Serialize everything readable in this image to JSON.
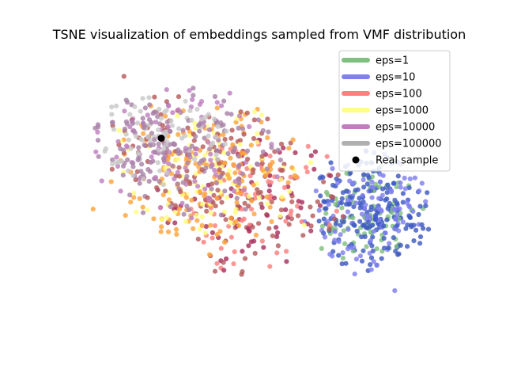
{
  "chart_data": {
    "type": "scatter",
    "title": "TSNE visualization of embeddings sampled from VMF distribution",
    "xlabel": "",
    "ylabel": "",
    "axes_visible": false,
    "grid": false,
    "legend_placement": "top-right",
    "xlim": [
      -60,
      60
    ],
    "ylim": [
      -50,
      50
    ],
    "series": [
      {
        "name": "eps=1",
        "color": "#7fbf7f",
        "marker": "circle",
        "clusters": [
          {
            "center": [
              33,
              -8
            ],
            "spread": [
              16,
              19
            ],
            "count": 160
          }
        ]
      },
      {
        "name": "eps=10",
        "color": "#7f7fef",
        "marker": "circle",
        "clusters": [
          {
            "center": [
              33,
              -8
            ],
            "spread": [
              18,
              21
            ],
            "count": 220
          }
        ]
      },
      {
        "name": "eps=100",
        "color": "#ff7f7f",
        "marker": "circle",
        "clusters": [
          {
            "center": [
              -2,
              -4
            ],
            "spread": [
              28,
              23
            ],
            "count": 220
          }
        ]
      },
      {
        "name": "eps=1000",
        "color": "#ffff7f",
        "marker": "circle",
        "clusters": [
          {
            "center": [
              -16,
              6
            ],
            "spread": [
              30,
              24
            ],
            "count": 260
          }
        ]
      },
      {
        "name": "eps=10000",
        "color": "#bf7fbf",
        "marker": "circle",
        "clusters": [
          {
            "center": [
              -22,
              12
            ],
            "spread": [
              28,
              22
            ],
            "count": 240
          }
        ]
      },
      {
        "name": "eps=100000",
        "color": "#b0b0b0",
        "marker": "circle",
        "clusters": [
          {
            "center": [
              -30,
              18
            ],
            "spread": [
              20,
              15
            ],
            "count": 160
          }
        ]
      },
      {
        "name": "Real sample",
        "color": "#000000",
        "marker": "circle",
        "x": [
          -30
        ],
        "y": [
          18
        ]
      }
    ],
    "overlay_palette": {
      "orange": "#ffa33c",
      "blue": "#3f5ac2",
      "dark_red": "#a9315f",
      "grey_purple": "#a882a8",
      "brown_red": "#b65c5c",
      "light_grey": "#c8c8c8"
    }
  },
  "legend": {
    "items": [
      {
        "label": "eps=1",
        "color": "#7fbf7f"
      },
      {
        "label": "eps=10",
        "color": "#7f7fef"
      },
      {
        "label": "eps=100",
        "color": "#ff7f7f"
      },
      {
        "label": "eps=1000",
        "color": "#ffff7f"
      },
      {
        "label": "eps=10000",
        "color": "#bf7fbf"
      },
      {
        "label": "eps=100000",
        "color": "#b0b0b0"
      },
      {
        "label": "Real sample",
        "color": "#000000"
      }
    ]
  }
}
